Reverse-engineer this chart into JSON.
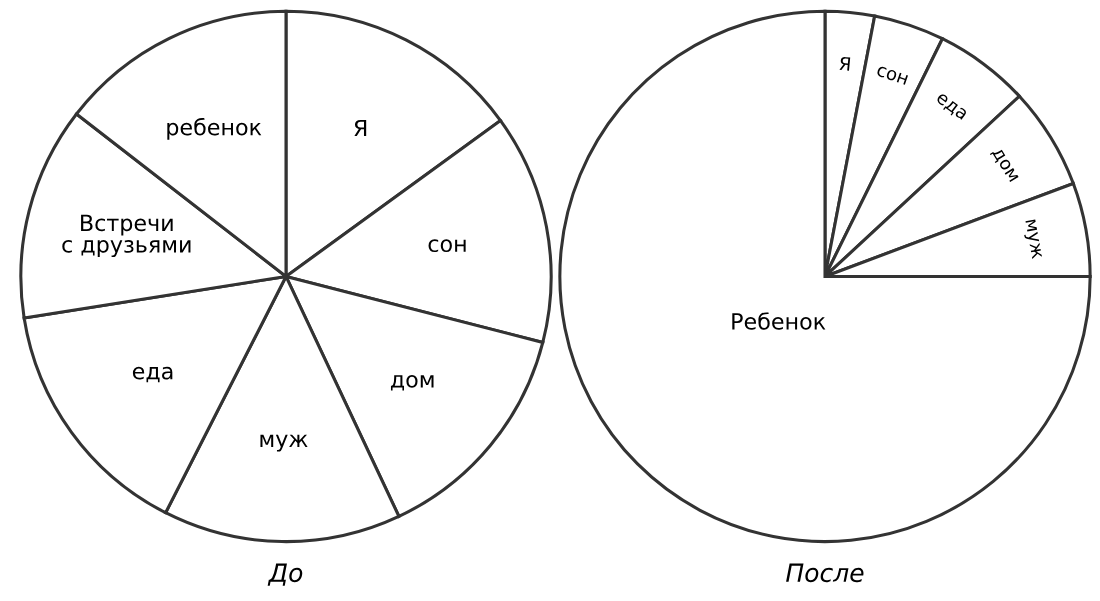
{
  "chart_data": [
    {
      "type": "pie",
      "title": "До",
      "categories": [
        "Я",
        "сон",
        "дом",
        "муж",
        "еда",
        "Встречи\nс друзьями",
        "ребенок"
      ],
      "values": [
        15,
        14,
        14,
        14.5,
        15,
        13,
        14.5
      ],
      "colors": [
        "#ffffff",
        "#ffffff",
        "#ffffff",
        "#ffffff",
        "#ffffff",
        "#ffffff",
        "#ffffff"
      ]
    },
    {
      "type": "pie",
      "title": "После",
      "categories": [
        "Я",
        "сон",
        "еда",
        "дом",
        "муж",
        "Ребенок"
      ],
      "values": [
        3,
        4.3,
        5.8,
        6.2,
        5.7,
        75
      ],
      "colors": [
        "#ffffff",
        "#ffffff",
        "#ffffff",
        "#ffffff",
        "#ffffff",
        "#ffffff"
      ]
    }
  ]
}
